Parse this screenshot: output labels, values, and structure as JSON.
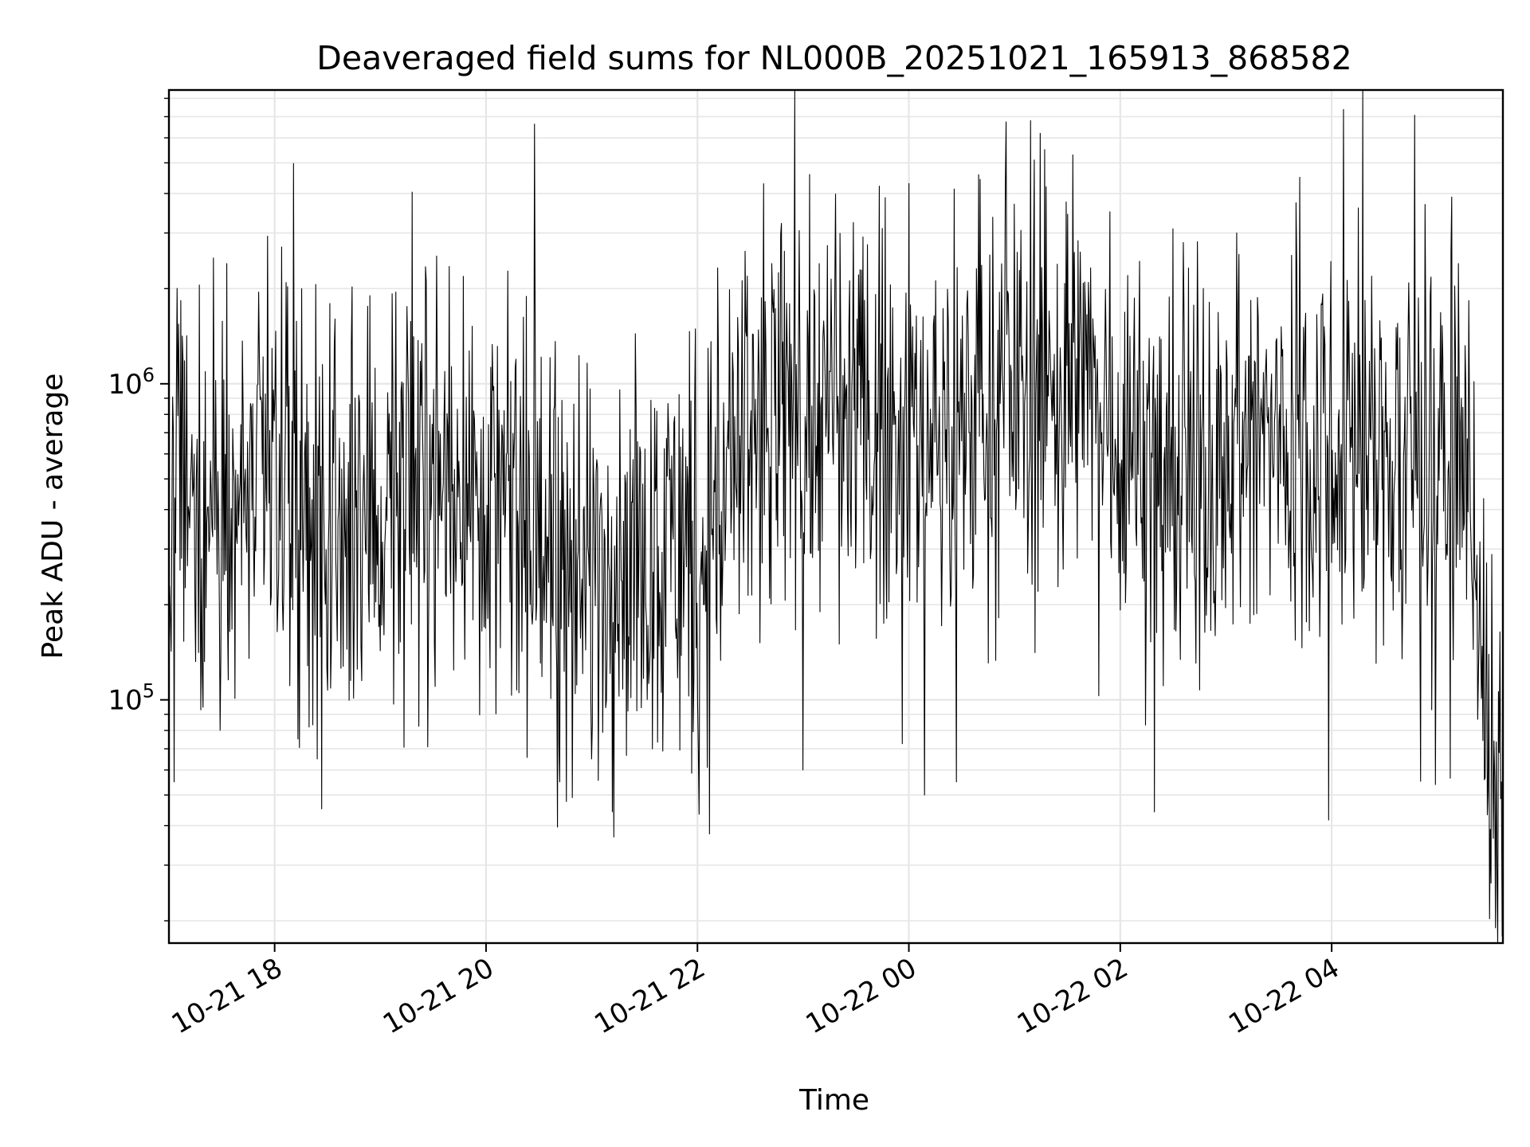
{
  "chart_data": {
    "type": "line",
    "title": "Deaveraged field sums for NL000B_20251021_165913_868582",
    "xlabel": "Time",
    "ylabel": "Peak ADU - average",
    "yscale": "log",
    "ylim": [
      17000,
      8500000
    ],
    "xlim_hours": [
      17.0,
      29.62
    ],
    "x_start": "2025-10-21 17:00",
    "x_end": "2025-10-22 05:37",
    "x_ticks": [
      {
        "hours": 18,
        "label": "10-21 18"
      },
      {
        "hours": 20,
        "label": "10-21 20"
      },
      {
        "hours": 22,
        "label": "10-21 22"
      },
      {
        "hours": 24,
        "label": "10-22 00"
      },
      {
        "hours": 26,
        "label": "10-22 02"
      },
      {
        "hours": 28,
        "label": "10-22 04"
      }
    ],
    "y_ticks": [
      {
        "value": 100000,
        "base": "10",
        "exp": "5"
      },
      {
        "value": 1000000,
        "base": "10",
        "exp": "6"
      }
    ],
    "grid": true,
    "line_color": "#000000",
    "grid_color": "#e6e6e6",
    "series": [
      {
        "name": "Deaveraged field sums",
        "n_points": 1800,
        "typical_level": [
          [
            17.0,
            110000
          ],
          [
            17.05,
            480000
          ],
          [
            17.5,
            420000
          ],
          [
            18.0,
            500000
          ],
          [
            18.4,
            300000
          ],
          [
            19.0,
            380000
          ],
          [
            19.7,
            550000
          ],
          [
            20.2,
            400000
          ],
          [
            20.8,
            250000
          ],
          [
            21.5,
            320000
          ],
          [
            22.0,
            300000
          ],
          [
            22.3,
            500000
          ],
          [
            22.8,
            800000
          ],
          [
            23.5,
            750000
          ],
          [
            24.0,
            700000
          ],
          [
            24.5,
            750000
          ],
          [
            25.0,
            900000
          ],
          [
            25.6,
            1000000
          ],
          [
            26.0,
            700000
          ],
          [
            26.6,
            500000
          ],
          [
            27.2,
            650000
          ],
          [
            27.8,
            700000
          ],
          [
            28.4,
            600000
          ],
          [
            29.0,
            550000
          ],
          [
            29.3,
            600000
          ],
          [
            29.4,
            200000
          ],
          [
            29.5,
            60000
          ],
          [
            29.62,
            45000
          ]
        ],
        "peaks": [
          [
            17.42,
            2500000
          ],
          [
            17.55,
            2400000
          ],
          [
            17.85,
            1950000
          ],
          [
            18.9,
            1900000
          ],
          [
            19.15,
            1950000
          ],
          [
            19.65,
            2350000
          ],
          [
            22.7,
            2400000
          ],
          [
            23.15,
            2400000
          ],
          [
            23.75,
            3100000
          ],
          [
            24.0,
            4300000
          ],
          [
            25.0,
            3700000
          ],
          [
            25.15,
            6800000
          ],
          [
            25.3,
            4200000
          ],
          [
            25.55,
            5300000
          ],
          [
            25.9,
            3500000
          ],
          [
            26.6,
            2800000
          ],
          [
            27.1,
            3000000
          ],
          [
            27.7,
            4500000
          ],
          [
            28.25,
            3600000
          ],
          [
            29.2,
            2400000
          ]
        ],
        "troughs": [
          [
            17.05,
            55000
          ],
          [
            18.4,
            65000
          ],
          [
            20.7,
            55000
          ],
          [
            21.0,
            65000
          ],
          [
            23.0,
            60000
          ],
          [
            24.15,
            50000
          ],
          [
            24.45,
            55000
          ],
          [
            29.55,
            19000
          ]
        ]
      }
    ]
  }
}
